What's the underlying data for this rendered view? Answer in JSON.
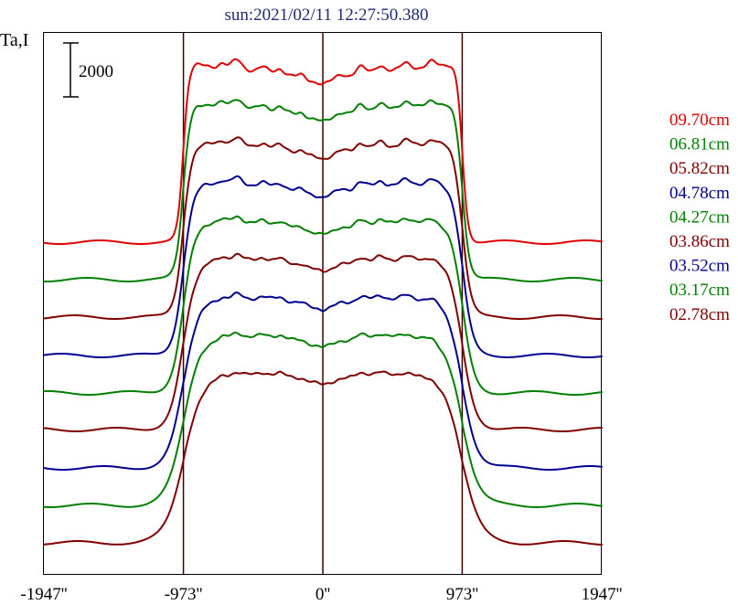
{
  "chart_data": {
    "type": "line",
    "title": "sun:2021/02/11 12:27:50.380",
    "ylabel": "Ta,I",
    "scale_bar_label": "2000",
    "xlim": [
      -1947,
      1947
    ],
    "x_ticks": [
      {
        "value": -1947,
        "label": "-1947''"
      },
      {
        "value": -973,
        "label": "-973''"
      },
      {
        "value": 0,
        "label": "0''"
      },
      {
        "value": 973,
        "label": "973''"
      },
      {
        "value": 1947,
        "label": "1947''"
      }
    ],
    "vertical_lines": [
      -973,
      0,
      973
    ],
    "series": [
      {
        "name": "09.70cm",
        "color": "#e00000"
      },
      {
        "name": "06.81cm",
        "color": "#008000"
      },
      {
        "name": "05.82cm",
        "color": "#800000"
      },
      {
        "name": "04.78cm",
        "color": "#000090"
      },
      {
        "name": "04.27cm",
        "color": "#008000"
      },
      {
        "name": "03.86cm",
        "color": "#800000"
      },
      {
        "name": "03.52cm",
        "color": "#000090"
      },
      {
        "name": "03.17cm",
        "color": "#008000"
      },
      {
        "name": "02.78cm",
        "color": "#800000"
      }
    ],
    "legend_position": "right"
  }
}
